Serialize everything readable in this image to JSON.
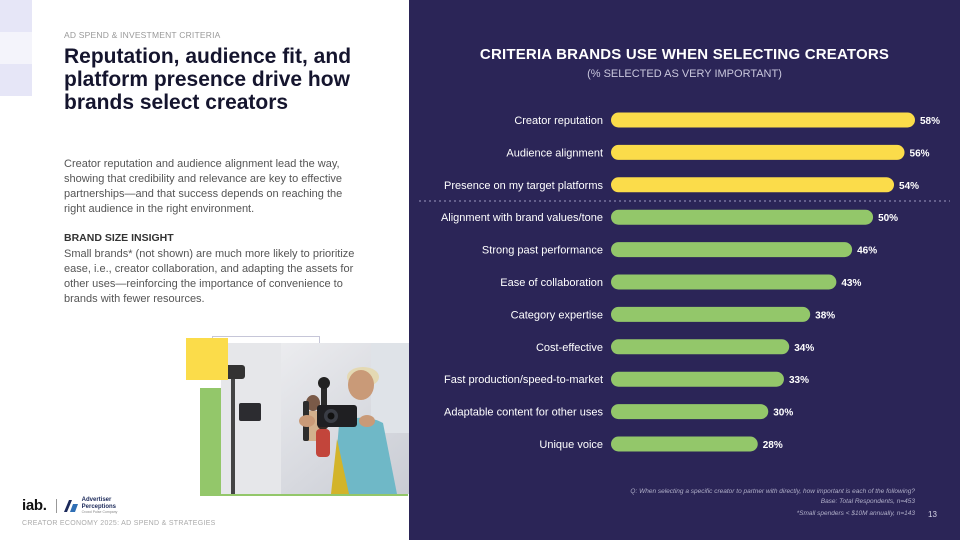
{
  "kicker": "AD SPEND & INVESTMENT CRITERIA",
  "headline": "Reputation, audience fit, and platform presence drive how brands select creators",
  "body": "Creator reputation and audience alignment lead the way, showing that credibility and relevance are key to effective partnerships—and that success depends on reaching the right audience in the right environment.",
  "insight": {
    "heading": "BRAND SIZE INSIGHT",
    "text": "Small brands* (not shown) are much more likely to prioritize ease, i.e., creator collaboration, and adapting the assets for other uses—reinforcing the importance of convenience to brands with fewer resources."
  },
  "logos": {
    "iab": "iab.",
    "partner_line1": "Advertiser",
    "partner_line2": "Perceptions",
    "partner_tagline": "Crowd Pulse Company"
  },
  "footer": "CREATOR ECONOMY 2025: AD SPEND & STRATEGIES",
  "page_number": "13",
  "notes": {
    "question": "Q: When selecting a specific creator to partner with directly, how important is each of the following?",
    "base": "Base: Total Respondents, n=453",
    "small": "*Small spenders < $10M annually, n=143"
  },
  "colors": {
    "panel_bg": "#2b2557",
    "bar_yellow": "#fbdc4a",
    "bar_green": "#93c76a",
    "text_light": "#ffffff"
  },
  "chart_data": {
    "type": "bar",
    "orientation": "horizontal",
    "title": "CRITERIA BRANDS USE WHEN SELECTING CREATORS",
    "subtitle": "(% SELECTED AS VERY IMPORTANT)",
    "categories": [
      "Creator reputation",
      "Audience alignment",
      "Presence on my target platforms",
      "Alignment with brand values/tone",
      "Strong past performance",
      "Ease of collaboration",
      "Category expertise",
      "Cost-effective",
      "Fast production/speed-to-market",
      "Adaptable content for other uses",
      "Unique voice"
    ],
    "values": [
      58,
      56,
      54,
      50,
      46,
      43,
      38,
      34,
      33,
      30,
      28
    ],
    "value_suffix": "%",
    "highlight_top_n": 3,
    "xlim": [
      0,
      58
    ],
    "grid": false,
    "legend": "none"
  }
}
